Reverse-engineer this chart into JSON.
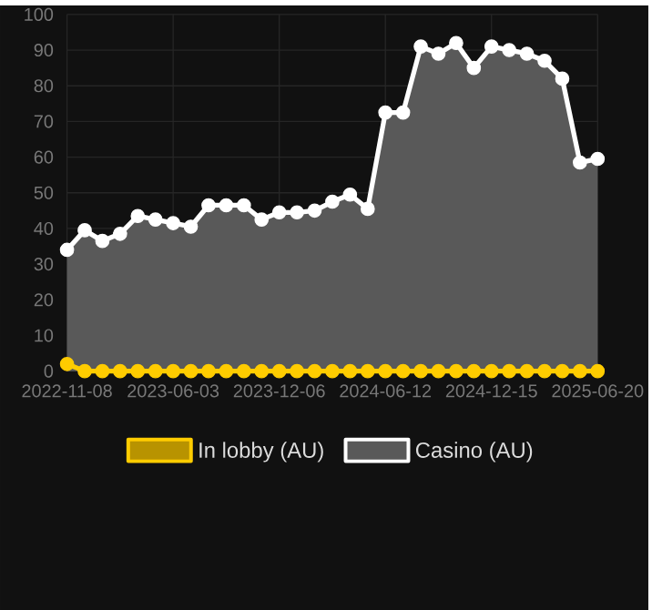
{
  "chart_data": {
    "type": "line",
    "categories": [
      "2022-11-08",
      null,
      null,
      null,
      null,
      null,
      "2023-06-03",
      null,
      null,
      null,
      null,
      null,
      "2023-12-06",
      null,
      null,
      null,
      null,
      null,
      "2024-06-12",
      null,
      null,
      null,
      null,
      null,
      "2024-12-15",
      null,
      null,
      null,
      null,
      null,
      "2025-06-20"
    ],
    "series": [
      {
        "name": "In lobby (AU)",
        "color": "#ffcc00",
        "values": [
          2,
          0,
          0,
          0,
          0,
          0,
          0,
          0,
          0,
          0,
          0,
          0,
          0,
          0,
          0,
          0,
          0,
          0,
          0,
          0,
          0,
          0,
          0,
          0,
          0,
          0,
          0,
          0,
          0,
          0,
          0
        ]
      },
      {
        "name": "Casino (AU)",
        "type": "area",
        "color": "#ffffff",
        "values": [
          34,
          39.5,
          36.5,
          38.5,
          43.5,
          42.5,
          41.5,
          40.5,
          46.5,
          46.5,
          46.5,
          42.5,
          44.5,
          44.5,
          45,
          47.5,
          49.5,
          45.5,
          72.5,
          72.5,
          91,
          89,
          92,
          85,
          91,
          90,
          89,
          87,
          82,
          58.5,
          59.5
        ]
      }
    ],
    "ylim": [
      0,
      100
    ],
    "yticks": [
      0,
      10,
      20,
      30,
      40,
      50,
      60,
      70,
      80,
      90,
      100
    ],
    "grid": true,
    "legend": "bottom",
    "marker": "circle"
  }
}
